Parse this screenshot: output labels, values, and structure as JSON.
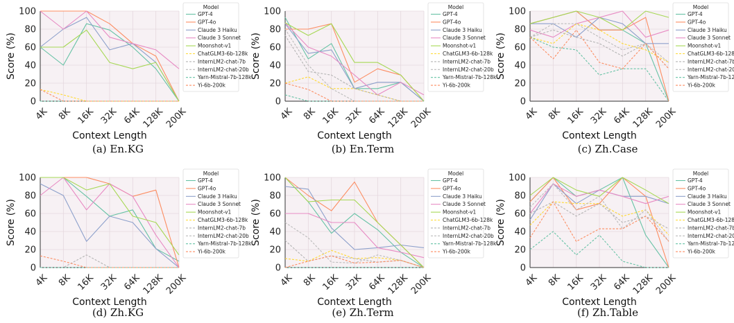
{
  "legend": {
    "title": "Model",
    "models": [
      {
        "name": "GPT-4",
        "color": "#66c2a5",
        "dash": false
      },
      {
        "name": "GPT-4o",
        "color": "#fc8d62",
        "dash": false
      },
      {
        "name": "Claude 3 Haiku",
        "color": "#8da0cb",
        "dash": false
      },
      {
        "name": "Claude 3 Sonnet",
        "color": "#e78ac3",
        "dash": false
      },
      {
        "name": "Moonshot-v1",
        "color": "#a6d854",
        "dash": false
      },
      {
        "name": "ChatGLM3-6b-128k",
        "color": "#ffd92f",
        "dash": true
      },
      {
        "name": "InternLM2-chat-7b",
        "color": "#b3b3b3",
        "dash": true
      },
      {
        "name": "InternLM2-chat-20b",
        "color": "#bbbbbb",
        "dash": true
      },
      {
        "name": "Yarn-Mistral-7b-128k",
        "color": "#66c2a5",
        "dash": true
      },
      {
        "name": "Yi-6b-200k",
        "color": "#fc8d62",
        "dash": true
      }
    ]
  },
  "chart_data": [
    {
      "type": "line",
      "caption": "(a) En.KG",
      "xlabel": "Context Length",
      "ylabel": "Score (%)",
      "ylim": [
        0,
        100
      ],
      "yticks": [
        0,
        20,
        40,
        60,
        80,
        100
      ],
      "categories": [
        "4K",
        "8K",
        "16K",
        "32K",
        "64K",
        "128K",
        "200K"
      ],
      "grid": true,
      "series": [
        {
          "name": "GPT-4",
          "values": [
            60,
            40,
            86,
            79,
            60,
            36,
            0
          ]
        },
        {
          "name": "GPT-4o",
          "values": [
            100,
            100,
            100,
            86,
            64,
            50,
            0
          ]
        },
        {
          "name": "Claude 3 Haiku",
          "values": [
            60,
            80,
            93,
            57,
            64,
            43,
            0
          ]
        },
        {
          "name": "Claude 3 Sonnet",
          "values": [
            100,
            80,
            100,
            71,
            64,
            57,
            36
          ]
        },
        {
          "name": "Moonshot-v1",
          "values": [
            60,
            60,
            79,
            43,
            36,
            43,
            0
          ]
        },
        {
          "name": "ChatGLM3-6b-128k",
          "values": [
            13,
            7,
            0,
            0,
            0,
            0,
            0
          ]
        },
        {
          "name": "InternLM2-chat-7b",
          "values": [
            0,
            0,
            0,
            0,
            0,
            0,
            0
          ]
        },
        {
          "name": "InternLM2-chat-20b",
          "values": [
            0,
            0,
            0,
            0,
            0,
            0,
            0
          ]
        },
        {
          "name": "Yarn-Mistral-7b-128k",
          "values": [
            0,
            0,
            0,
            0,
            0,
            0,
            0
          ]
        },
        {
          "name": "Yi-6b-200k",
          "values": [
            13,
            0,
            0,
            0,
            0,
            0,
            0
          ]
        }
      ]
    },
    {
      "type": "line",
      "caption": "(b) En.Term",
      "xlabel": "Context Length",
      "ylabel": "Score (%)",
      "ylim": [
        0,
        100
      ],
      "yticks": [
        0,
        20,
        40,
        60,
        80,
        100
      ],
      "categories": [
        "4K",
        "8K",
        "16K",
        "32K",
        "64K",
        "128K",
        "200K"
      ],
      "grid": true,
      "series": [
        {
          "name": "GPT-4",
          "values": [
            93,
            47,
            64,
            14,
            14,
            21,
            0
          ]
        },
        {
          "name": "GPT-4o",
          "values": [
            80,
            80,
            86,
            21,
            36,
            29,
            0
          ]
        },
        {
          "name": "Claude 3 Haiku",
          "values": [
            86,
            53,
            57,
            14,
            21,
            21,
            0
          ]
        },
        {
          "name": "Claude 3 Sonnet",
          "values": [
            87,
            60,
            50,
            29,
            7,
            21,
            7
          ]
        },
        {
          "name": "Moonshot-v1",
          "values": [
            87,
            73,
            86,
            43,
            43,
            29,
            0
          ]
        },
        {
          "name": "ChatGLM3-6b-128k",
          "values": [
            20,
            27,
            14,
            14,
            7,
            0,
            0
          ]
        },
        {
          "name": "InternLM2-chat-7b",
          "values": [
            73,
            33,
            29,
            14,
            7,
            0,
            0
          ]
        },
        {
          "name": "InternLM2-chat-20b",
          "values": [
            80,
            40,
            14,
            0,
            0,
            0,
            0
          ]
        },
        {
          "name": "Yarn-Mistral-7b-128k",
          "values": [
            7,
            0,
            0,
            0,
            0,
            0,
            0
          ]
        },
        {
          "name": "Yi-6b-200k",
          "values": [
            20,
            13,
            0,
            0,
            0,
            0,
            0
          ]
        }
      ]
    },
    {
      "type": "line",
      "caption": "(c) Zh.Case",
      "xlabel": "Context Length",
      "ylabel": "Score (%)",
      "ylim": [
        0,
        100
      ],
      "yticks": [
        0,
        20,
        40,
        60,
        80,
        100
      ],
      "categories": [
        "4K",
        "8K",
        "16K",
        "32K",
        "64K",
        "128K",
        "200K"
      ],
      "grid": true,
      "series": [
        {
          "name": "GPT-4",
          "values": [
            86,
            93,
            100,
            79,
            79,
            64,
            0
          ]
        },
        {
          "name": "GPT-4o",
          "values": [
            86,
            93,
            100,
            79,
            79,
            93,
            0
          ]
        },
        {
          "name": "Claude 3 Haiku",
          "values": [
            86,
            86,
            71,
            93,
            86,
            64,
            64
          ]
        },
        {
          "name": "Claude 3 Sonnet",
          "values": [
            79,
            71,
            86,
            93,
            100,
            71,
            79
          ]
        },
        {
          "name": "Moonshot-v1",
          "values": [
            86,
            93,
            100,
            93,
            79,
            100,
            93
          ]
        },
        {
          "name": "ChatGLM3-6b-128k",
          "values": [
            71,
            64,
            86,
            79,
            64,
            57,
            43
          ]
        },
        {
          "name": "InternLM2-chat-7b",
          "values": [
            71,
            79,
            71,
            64,
            50,
            64,
            36
          ]
        },
        {
          "name": "InternLM2-chat-20b",
          "values": [
            71,
            86,
            86,
            71,
            57,
            64,
            43
          ]
        },
        {
          "name": "Yarn-Mistral-7b-128k",
          "values": [
            71,
            60,
            57,
            29,
            36,
            36,
            0
          ]
        },
        {
          "name": "Yi-6b-200k",
          "values": [
            71,
            47,
            79,
            43,
            36,
            64,
            36
          ]
        }
      ]
    },
    {
      "type": "line",
      "caption": "(d) Zh.KG",
      "xlabel": "Context Length",
      "ylabel": "Score (%)",
      "ylim": [
        0,
        100
      ],
      "yticks": [
        0,
        20,
        40,
        60,
        80,
        100
      ],
      "categories": [
        "4K",
        "8K",
        "16K",
        "32K",
        "64K",
        "128K",
        "200K"
      ],
      "grid": true,
      "series": [
        {
          "name": "GPT-4",
          "values": [
            100,
            100,
            79,
            57,
            64,
            21,
            7
          ]
        },
        {
          "name": "GPT-4o",
          "values": [
            100,
            100,
            100,
            93,
            79,
            86,
            0
          ]
        },
        {
          "name": "Claude 3 Haiku",
          "values": [
            93,
            80,
            29,
            57,
            50,
            21,
            0
          ]
        },
        {
          "name": "Claude 3 Sonnet",
          "values": [
            80,
            100,
            64,
            93,
            79,
            36,
            0
          ]
        },
        {
          "name": "Moonshot-v1",
          "values": [
            100,
            100,
            86,
            93,
            57,
            50,
            14
          ]
        },
        {
          "name": "ChatGLM3-6b-128k",
          "values": [
            0,
            0,
            0,
            0,
            0,
            0,
            0
          ]
        },
        {
          "name": "InternLM2-chat-7b",
          "values": [
            0,
            0,
            14,
            0,
            0,
            0,
            0
          ]
        },
        {
          "name": "InternLM2-chat-20b",
          "values": [
            0,
            0,
            0,
            0,
            0,
            0,
            0
          ]
        },
        {
          "name": "Yarn-Mistral-7b-128k",
          "values": [
            0,
            0,
            0,
            0,
            0,
            0,
            0
          ]
        },
        {
          "name": "Yi-6b-200k",
          "values": [
            13,
            7,
            0,
            0,
            0,
            0,
            0
          ]
        }
      ]
    },
    {
      "type": "line",
      "caption": "(e) Zh.Term",
      "xlabel": "Context Length",
      "ylabel": "Score (%)",
      "ylim": [
        0,
        100
      ],
      "yticks": [
        0,
        20,
        40,
        60,
        80,
        100
      ],
      "categories": [
        "4K",
        "8K",
        "16K",
        "32K",
        "64K",
        "128K",
        "200K"
      ],
      "grid": true,
      "series": [
        {
          "name": "GPT-4",
          "values": [
            100,
            73,
            38,
            60,
            42,
            17,
            0
          ]
        },
        {
          "name": "GPT-4o",
          "values": [
            100,
            80,
            63,
            95,
            50,
            25,
            0
          ]
        },
        {
          "name": "Claude 3 Haiku",
          "values": [
            90,
            87,
            44,
            20,
            22,
            25,
            22
          ]
        },
        {
          "name": "Claude 3 Sonnet",
          "values": [
            60,
            60,
            50,
            50,
            22,
            17,
            11
          ]
        },
        {
          "name": "Moonshot-v1",
          "values": [
            100,
            73,
            75,
            75,
            50,
            25,
            0
          ]
        },
        {
          "name": "ChatGLM3-6b-128k",
          "values": [
            10,
            7,
            19,
            10,
            11,
            8,
            0
          ]
        },
        {
          "name": "InternLM2-chat-7b",
          "values": [
            30,
            7,
            13,
            10,
            6,
            8,
            0
          ]
        },
        {
          "name": "InternLM2-chat-20b",
          "values": [
            50,
            33,
            6,
            5,
            14,
            8,
            0
          ]
        },
        {
          "name": "Yarn-Mistral-7b-128k",
          "values": [
            0,
            0,
            0,
            0,
            0,
            0,
            0
          ]
        },
        {
          "name": "Yi-6b-200k",
          "values": [
            0,
            7,
            13,
            5,
            6,
            8,
            0
          ]
        }
      ]
    },
    {
      "type": "line",
      "caption": "(f) Zh.Table",
      "xlabel": "Context Length",
      "ylabel": "Score (%)",
      "ylim": [
        0,
        100
      ],
      "yticks": [
        0,
        20,
        40,
        60,
        80,
        100
      ],
      "categories": [
        "4K",
        "8K",
        "16K",
        "32K",
        "64K",
        "128K",
        "200K"
      ],
      "grid": true,
      "series": [
        {
          "name": "GPT-4",
          "values": [
            73,
            100,
            79,
            86,
            100,
            36,
            0
          ]
        },
        {
          "name": "GPT-4o",
          "values": [
            73,
            100,
            64,
            71,
            100,
            79,
            0
          ]
        },
        {
          "name": "Claude 3 Haiku",
          "values": [
            53,
            93,
            71,
            86,
            79,
            79,
            71
          ]
        },
        {
          "name": "Claude 3 Sonnet",
          "values": [
            60,
            93,
            79,
            86,
            79,
            71,
            79
          ]
        },
        {
          "name": "Moonshot-v1",
          "values": [
            80,
            100,
            86,
            79,
            100,
            86,
            71
          ]
        },
        {
          "name": "ChatGLM3-6b-128k",
          "values": [
            47,
            73,
            71,
            71,
            57,
            64,
            36
          ]
        },
        {
          "name": "InternLM2-chat-7b",
          "values": [
            60,
            73,
            57,
            71,
            50,
            57,
            43
          ]
        },
        {
          "name": "InternLM2-chat-20b",
          "values": [
            67,
            93,
            64,
            79,
            43,
            64,
            29
          ]
        },
        {
          "name": "Yarn-Mistral-7b-128k",
          "values": [
            20,
            40,
            14,
            36,
            7,
            0,
            0
          ]
        },
        {
          "name": "Yi-6b-200k",
          "values": [
            33,
            73,
            29,
            43,
            43,
            57,
            29
          ]
        }
      ]
    }
  ]
}
